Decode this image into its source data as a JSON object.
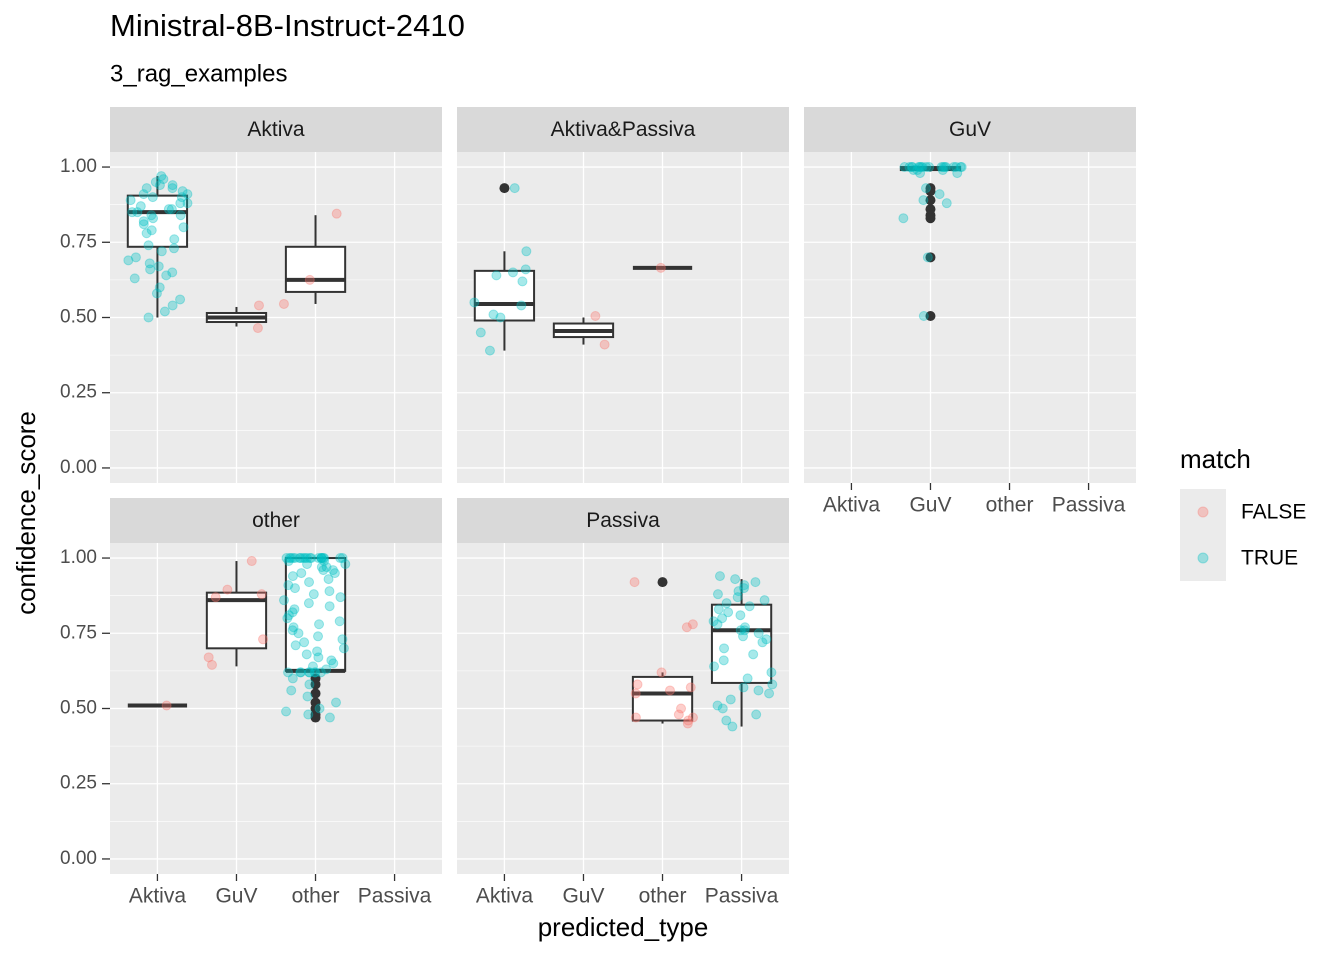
{
  "chart_data": {
    "type": "box",
    "title": "Ministral-8B-Instruct-2410",
    "subtitle": "3_rag_examples",
    "x_label": "predicted_type",
    "y_label": "confidence_score",
    "legend_title": "match",
    "categories": [
      "Aktiva",
      "GuV",
      "other",
      "Passiva"
    ],
    "series": [
      {
        "name": "FALSE",
        "color": "#f8766d"
      },
      {
        "name": "TRUE",
        "color": "#00bfc4"
      }
    ],
    "ylim": [
      -0.05,
      1.05
    ],
    "yticks": [
      {
        "value": 0,
        "label": "0.00"
      },
      {
        "value": 0.25,
        "label": "0.25"
      },
      {
        "value": 0.5,
        "label": "0.50"
      },
      {
        "value": 0.75,
        "label": "0.75"
      },
      {
        "value": 1,
        "label": "1.00"
      }
    ],
    "grid": true,
    "facets": [
      {
        "name": "Aktiva",
        "boxes": [
          {
            "stats": [
              0.5,
              0.735,
              0.85,
              0.905,
              0.97
            ],
            "outliers": []
          },
          {
            "stats": [
              0.47,
              0.485,
              0.5,
              0.515,
              0.535
            ],
            "outliers": []
          },
          {
            "stats": [
              0.545,
              0.585,
              0.625,
              0.735,
              0.84
            ],
            "outliers": []
          },
          null
        ],
        "points": [
          [
            [],
            [
              0.465,
              0.54
            ],
            [
              0.845,
              0.625,
              0.545
            ],
            []
          ],
          [
            [
              0.97,
              0.96,
              0.95,
              0.94,
              0.94,
              0.93,
              0.93,
              0.92,
              0.91,
              0.91,
              0.9,
              0.9,
              0.89,
              0.88,
              0.88,
              0.87,
              0.86,
              0.86,
              0.85,
              0.85,
              0.84,
              0.84,
              0.83,
              0.82,
              0.81,
              0.8,
              0.79,
              0.78,
              0.76,
              0.74,
              0.73,
              0.72,
              0.7,
              0.69,
              0.68,
              0.67,
              0.66,
              0.65,
              0.64,
              0.63,
              0.6,
              0.58,
              0.56,
              0.54,
              0.52,
              0.5
            ],
            [],
            [],
            []
          ]
        ]
      },
      {
        "name": "Aktiva&Passiva",
        "boxes": [
          {
            "stats": [
              0.39,
              0.49,
              0.545,
              0.655,
              0.72
            ],
            "outliers": [
              0.93
            ]
          },
          {
            "stats": [
              0.41,
              0.435,
              0.455,
              0.48,
              0.5
            ],
            "outliers": []
          },
          {
            "stats": [
              0.665,
              0.665,
              0.665,
              0.665,
              0.665
            ],
            "outliers": []
          },
          null
        ],
        "points": [
          [
            [],
            [
              0.41,
              0.505
            ],
            [
              0.665
            ],
            []
          ],
          [
            [
              0.93,
              0.72,
              0.66,
              0.65,
              0.64,
              0.62,
              0.55,
              0.54,
              0.51,
              0.5,
              0.45,
              0.39
            ],
            [],
            [],
            []
          ]
        ]
      },
      {
        "name": "GuV",
        "boxes": [
          null,
          {
            "stats": [
              0.985,
              0.99,
              0.995,
              1,
              1
            ],
            "outliers": [
              0.93,
              0.92,
              0.89,
              0.86,
              0.84,
              0.83,
              0.7,
              0.505
            ]
          },
          null,
          null
        ],
        "points": [
          [
            [],
            [],
            [],
            []
          ],
          [
            [],
            [
              1,
              1,
              1,
              1,
              1,
              1,
              1,
              1,
              1,
              1,
              1,
              1,
              1,
              1,
              1,
              1,
              1,
              1,
              0.99,
              0.99,
              0.99,
              0.98,
              0.98,
              0.93,
              0.91,
              0.89,
              0.88,
              0.83,
              0.7,
              0.505
            ],
            [],
            []
          ]
        ]
      },
      {
        "name": "other",
        "boxes": [
          {
            "stats": [
              0.51,
              0.51,
              0.51,
              0.51,
              0.51
            ],
            "outliers": []
          },
          {
            "stats": [
              0.64,
              0.7,
              0.86,
              0.885,
              0.99
            ],
            "outliers": []
          },
          {
            "stats": [
              0.625,
              0.625,
              0.625,
              1,
              1
            ],
            "outliers": [
              0.6,
              0.58,
              0.55,
              0.52,
              0.5,
              0.48,
              0.47
            ]
          },
          null
        ],
        "points": [
          [
            [
              0.51
            ],
            [
              0.99,
              0.895,
              0.88,
              0.87,
              0.73,
              0.67,
              0.645
            ],
            [],
            []
          ],
          [
            [],
            [],
            [
              1,
              1,
              1,
              1,
              1,
              1,
              1,
              1,
              1,
              1,
              1,
              1,
              1,
              1,
              1,
              1,
              1,
              1,
              1,
              1,
              0.99,
              0.99,
              0.98,
              0.98,
              0.97,
              0.97,
              0.96,
              0.96,
              0.95,
              0.95,
              0.94,
              0.93,
              0.92,
              0.91,
              0.9,
              0.89,
              0.88,
              0.87,
              0.86,
              0.85,
              0.84,
              0.83,
              0.82,
              0.81,
              0.8,
              0.79,
              0.78,
              0.77,
              0.76,
              0.75,
              0.74,
              0.73,
              0.72,
              0.71,
              0.7,
              0.69,
              0.68,
              0.67,
              0.66,
              0.65,
              0.64,
              0.63,
              0.62,
              0.62,
              0.62,
              0.62,
              0.62,
              0.62,
              0.62,
              0.62,
              0.6,
              0.58,
              0.56,
              0.54,
              0.52,
              0.5,
              0.49,
              0.48,
              0.47
            ],
            []
          ]
        ]
      },
      {
        "name": "Passiva",
        "boxes": [
          null,
          null,
          {
            "stats": [
              0.45,
              0.46,
              0.55,
              0.605,
              0.62
            ],
            "outliers": [
              0.92
            ]
          },
          {
            "stats": [
              0.44,
              0.585,
              0.76,
              0.845,
              0.93
            ],
            "outliers": []
          }
        ],
        "points": [
          [
            [],
            [],
            [
              0.92,
              0.78,
              0.77,
              0.62,
              0.58,
              0.57,
              0.56,
              0.55,
              0.5,
              0.48,
              0.47,
              0.47,
              0.46,
              0.45
            ],
            []
          ],
          [
            [],
            [],
            [],
            [
              0.94,
              0.93,
              0.92,
              0.91,
              0.9,
              0.89,
              0.88,
              0.87,
              0.86,
              0.85,
              0.84,
              0.83,
              0.82,
              0.81,
              0.8,
              0.79,
              0.78,
              0.77,
              0.76,
              0.76,
              0.75,
              0.74,
              0.73,
              0.72,
              0.7,
              0.68,
              0.66,
              0.64,
              0.62,
              0.6,
              0.58,
              0.57,
              0.56,
              0.55,
              0.53,
              0.51,
              0.5,
              0.48,
              0.46,
              0.44
            ]
          ]
        ]
      }
    ]
  }
}
